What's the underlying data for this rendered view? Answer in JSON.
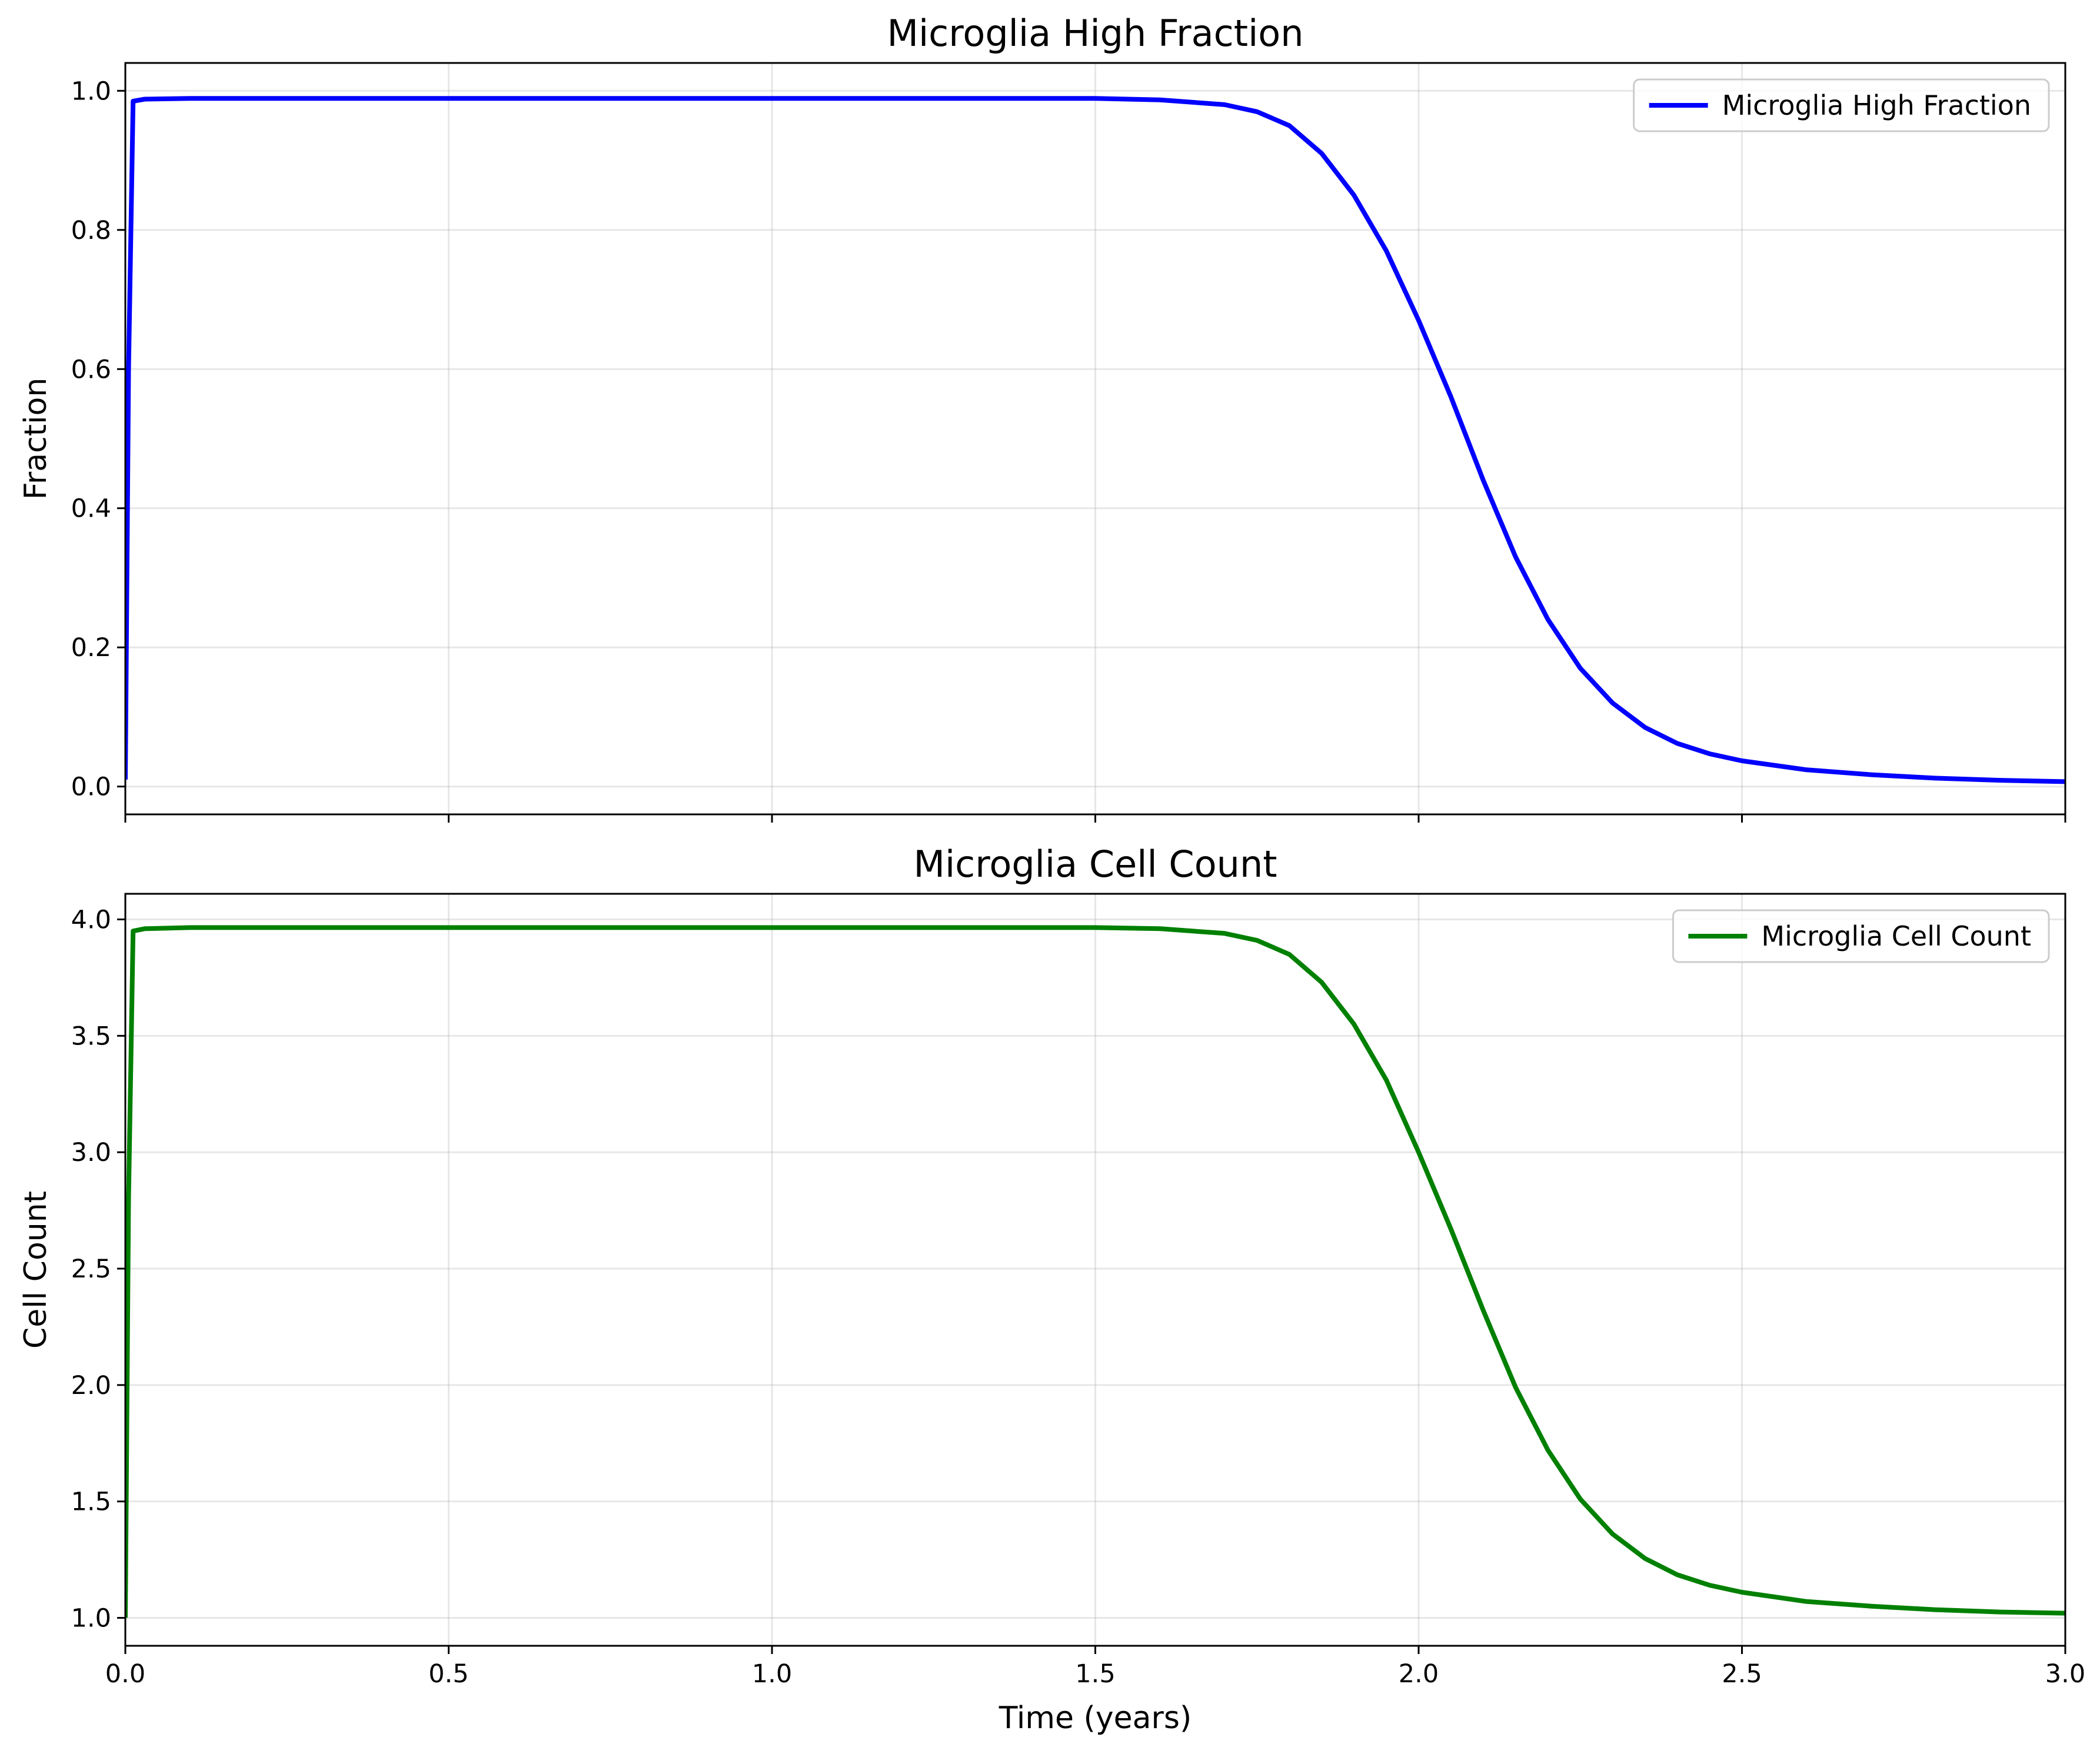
{
  "chart_data": [
    {
      "type": "line",
      "title": "Microglia High Fraction",
      "xlabel": "",
      "ylabel": "Fraction",
      "xlim": [
        0.0,
        3.0
      ],
      "ylim": [
        -0.04,
        1.04
      ],
      "xticks": [
        0.0,
        0.5,
        1.0,
        1.5,
        2.0,
        2.5,
        3.0
      ],
      "xtick_labels_shown": false,
      "yticks": [
        0.0,
        0.2,
        0.4,
        0.6,
        0.8,
        1.0
      ],
      "ytick_labels": [
        "0.0",
        "0.2",
        "0.4",
        "0.6",
        "0.8",
        "1.0"
      ],
      "grid": true,
      "legend_position": "upper right",
      "series": [
        {
          "name": "Microglia High Fraction",
          "color": "#0000ff",
          "x": [
            0.0,
            0.005,
            0.012,
            0.03,
            0.1,
            0.5,
            1.0,
            1.5,
            1.6,
            1.7,
            1.75,
            1.8,
            1.85,
            1.9,
            1.95,
            2.0,
            2.05,
            2.1,
            2.15,
            2.2,
            2.25,
            2.3,
            2.35,
            2.4,
            2.45,
            2.5,
            2.6,
            2.7,
            2.8,
            2.9,
            3.0
          ],
          "y": [
            0.01,
            0.6,
            0.985,
            0.988,
            0.989,
            0.989,
            0.989,
            0.989,
            0.987,
            0.98,
            0.97,
            0.95,
            0.91,
            0.85,
            0.77,
            0.67,
            0.56,
            0.44,
            0.33,
            0.24,
            0.17,
            0.12,
            0.085,
            0.062,
            0.047,
            0.037,
            0.024,
            0.017,
            0.012,
            0.009,
            0.007
          ]
        }
      ]
    },
    {
      "type": "line",
      "title": "Microglia Cell Count",
      "xlabel": "Time (years)",
      "ylabel": "Cell Count",
      "xlim": [
        0.0,
        3.0
      ],
      "ylim": [
        0.88,
        4.11
      ],
      "xticks": [
        0.0,
        0.5,
        1.0,
        1.5,
        2.0,
        2.5,
        3.0
      ],
      "xtick_labels": [
        "0.0",
        "0.5",
        "1.0",
        "1.5",
        "2.0",
        "2.5",
        "3.0"
      ],
      "yticks": [
        1.0,
        1.5,
        2.0,
        2.5,
        3.0,
        3.5,
        4.0
      ],
      "ytick_labels": [
        "1.0",
        "1.5",
        "2.0",
        "2.5",
        "3.0",
        "3.5",
        "4.0"
      ],
      "grid": true,
      "legend_position": "upper right",
      "series": [
        {
          "name": "Microglia Cell Count",
          "color": "#008000",
          "x": [
            0.0,
            0.005,
            0.012,
            0.03,
            0.1,
            0.5,
            1.0,
            1.5,
            1.6,
            1.7,
            1.75,
            1.8,
            1.85,
            1.9,
            1.95,
            2.0,
            2.05,
            2.1,
            2.15,
            2.2,
            2.25,
            2.3,
            2.35,
            2.4,
            2.45,
            2.5,
            2.6,
            2.7,
            2.8,
            2.9,
            3.0
          ],
          "y": [
            1.0,
            2.8,
            3.95,
            3.96,
            3.965,
            3.965,
            3.965,
            3.965,
            3.96,
            3.94,
            3.91,
            3.85,
            3.73,
            3.55,
            3.31,
            3.0,
            2.67,
            2.32,
            1.99,
            1.72,
            1.51,
            1.36,
            1.255,
            1.185,
            1.14,
            1.11,
            1.07,
            1.05,
            1.035,
            1.025,
            1.02
          ]
        }
      ]
    }
  ]
}
